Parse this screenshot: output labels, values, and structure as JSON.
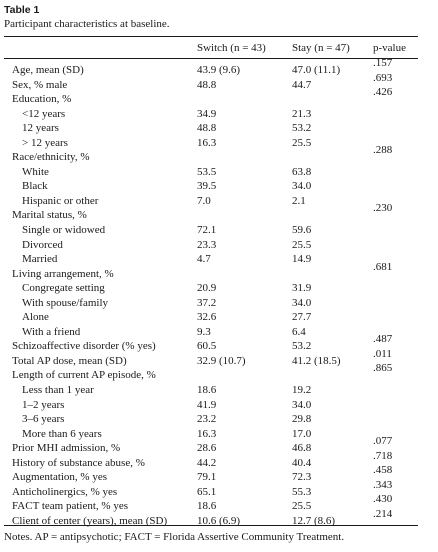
{
  "table": {
    "label": "Table 1",
    "caption": "Participant characteristics at baseline.",
    "columns": [
      "",
      "Switch (n = 43)",
      "Stay (n = 47)",
      "p-value"
    ],
    "rows": [
      {
        "label": "Age, mean (SD)",
        "indent": false,
        "switch": "43.9 (9.6)",
        "stay": "47.0 (11.1)",
        "p": ".157"
      },
      {
        "label": "Sex, % male",
        "indent": false,
        "switch": "48.8",
        "stay": "44.7",
        "p": ".693"
      },
      {
        "label": "Education, %",
        "indent": false,
        "switch": "",
        "stay": "",
        "p": ".426"
      },
      {
        "label": "<12 years",
        "indent": true,
        "switch": "34.9",
        "stay": "21.3",
        "p": ""
      },
      {
        "label": "12 years",
        "indent": true,
        "switch": "48.8",
        "stay": "53.2",
        "p": ""
      },
      {
        "label": "> 12 years",
        "indent": true,
        "switch": "16.3",
        "stay": "25.5",
        "p": ""
      },
      {
        "label": "Race/ethnicity, %",
        "indent": false,
        "switch": "",
        "stay": "",
        "p": ".288"
      },
      {
        "label": "White",
        "indent": true,
        "switch": "53.5",
        "stay": "63.8",
        "p": ""
      },
      {
        "label": "Black",
        "indent": true,
        "switch": "39.5",
        "stay": "34.0",
        "p": ""
      },
      {
        "label": "Hispanic or other",
        "indent": true,
        "switch": "7.0",
        "stay": "2.1",
        "p": ""
      },
      {
        "label": "Marital status, %",
        "indent": false,
        "switch": "",
        "stay": "",
        "p": ".230"
      },
      {
        "label": "Single or widowed",
        "indent": true,
        "switch": "72.1",
        "stay": "59.6",
        "p": ""
      },
      {
        "label": "Divorced",
        "indent": true,
        "switch": "23.3",
        "stay": "25.5",
        "p": ""
      },
      {
        "label": "Married",
        "indent": true,
        "switch": "4.7",
        "stay": "14.9",
        "p": ""
      },
      {
        "label": "Living arrangement, %",
        "indent": false,
        "switch": "",
        "stay": "",
        "p": ".681"
      },
      {
        "label": "Congregate setting",
        "indent": true,
        "switch": "20.9",
        "stay": "31.9",
        "p": ""
      },
      {
        "label": "With spouse/family",
        "indent": true,
        "switch": "37.2",
        "stay": "34.0",
        "p": ""
      },
      {
        "label": "Alone",
        "indent": true,
        "switch": "32.6",
        "stay": "27.7",
        "p": ""
      },
      {
        "label": "With a friend",
        "indent": true,
        "switch": "9.3",
        "stay": "6.4",
        "p": ""
      },
      {
        "label": "Schizoaffective disorder (% yes)",
        "indent": false,
        "switch": "60.5",
        "stay": "53.2",
        "p": ".487"
      },
      {
        "label": "Total AP dose, mean (SD)",
        "indent": false,
        "switch": "32.9 (10.7)",
        "stay": "41.2 (18.5)",
        "p": ".011"
      },
      {
        "label": "Length of current AP episode, %",
        "indent": false,
        "switch": "",
        "stay": "",
        "p": ".865"
      },
      {
        "label": "Less than 1 year",
        "indent": true,
        "switch": "18.6",
        "stay": "19.2",
        "p": ""
      },
      {
        "label": "1–2 years",
        "indent": true,
        "switch": "41.9",
        "stay": "34.0",
        "p": ""
      },
      {
        "label": "3–6 years",
        "indent": true,
        "switch": "23.2",
        "stay": "29.8",
        "p": ""
      },
      {
        "label": "More than 6 years",
        "indent": true,
        "switch": "16.3",
        "stay": "17.0",
        "p": ""
      },
      {
        "label": "Prior MHI admission, %",
        "indent": false,
        "switch": "28.6",
        "stay": "46.8",
        "p": ".077"
      },
      {
        "label": "History of substance abuse, %",
        "indent": false,
        "switch": "44.2",
        "stay": "40.4",
        "p": ".718"
      },
      {
        "label": "Augmentation, % yes",
        "indent": false,
        "switch": "79.1",
        "stay": "72.3",
        "p": ".458"
      },
      {
        "label": "Anticholinergics, % yes",
        "indent": false,
        "switch": "65.1",
        "stay": "55.3",
        "p": ".343"
      },
      {
        "label": "FACT team patient, % yes",
        "indent": false,
        "switch": "18.6",
        "stay": "25.5",
        "p": ".430"
      },
      {
        "label": "Client of center (years), mean (SD)",
        "indent": false,
        "switch": "10.6 (6.9)",
        "stay": "12.7 (8.6)",
        "p": ".214"
      }
    ],
    "note": "Notes. AP = antipsychotic; FACT = Florida Assertive Community Treatment."
  }
}
